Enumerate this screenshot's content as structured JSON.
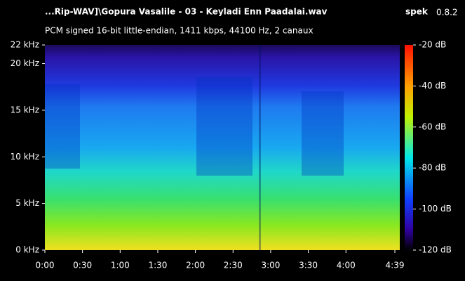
{
  "chart_data": {
    "type": "spectrogram",
    "title": "...Rip-WAV]\\Gopura Vasalile - 03 - Keyladi Enn Paadalai.wav",
    "app_name": "spek",
    "app_version": "0.8.2",
    "subtitle": "PCM signed 16-bit little-endian, 1411 kbps, 44100 Hz, 2 canaux",
    "xlim": [
      0,
      279
    ],
    "xticks": [
      {
        "value": 0,
        "label": "0:00"
      },
      {
        "value": 30,
        "label": "0:30"
      },
      {
        "value": 60,
        "label": "1:00"
      },
      {
        "value": 90,
        "label": "1:30"
      },
      {
        "value": 120,
        "label": "2:00"
      },
      {
        "value": 150,
        "label": "2:30"
      },
      {
        "value": 180,
        "label": "3:00"
      },
      {
        "value": 210,
        "label": "3:30"
      },
      {
        "value": 240,
        "label": "4:00"
      },
      {
        "value": 279,
        "label": "4:39"
      }
    ],
    "ylim": [
      0,
      22
    ],
    "yticks": [
      {
        "value": 0,
        "label": "0 kHz"
      },
      {
        "value": 5,
        "label": "5 kHz"
      },
      {
        "value": 10,
        "label": "10 kHz"
      },
      {
        "value": 15,
        "label": "15 kHz"
      },
      {
        "value": 20,
        "label": "20 kHz"
      },
      {
        "value": 22,
        "label": "22 kHz"
      }
    ],
    "colorbar_lim": [
      -120,
      -20
    ],
    "colorbar_ticks": [
      {
        "value": -20,
        "label": "-20 dB"
      },
      {
        "value": -40,
        "label": "-40 dB"
      },
      {
        "value": -60,
        "label": "-60 dB"
      },
      {
        "value": -80,
        "label": "-80 dB"
      },
      {
        "value": -100,
        "label": "-100 dB"
      },
      {
        "value": -120,
        "label": "-120 dB"
      }
    ]
  }
}
